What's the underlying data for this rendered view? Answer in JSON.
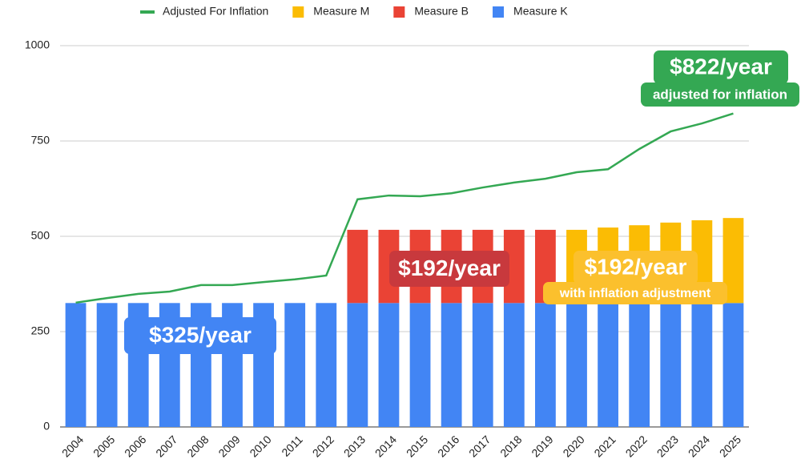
{
  "chart_data": {
    "type": "bar",
    "stacked": true,
    "categories": [
      "2004",
      "2005",
      "2006",
      "2007",
      "2008",
      "2009",
      "2010",
      "2011",
      "2012",
      "2013",
      "2014",
      "2015",
      "2016",
      "2017",
      "2018",
      "2019",
      "2020",
      "2021",
      "2022",
      "2023",
      "2024",
      "2025"
    ],
    "series": [
      {
        "name": "Measure K",
        "color": "#4285f4",
        "type": "bar",
        "values": [
          325,
          325,
          325,
          325,
          325,
          325,
          325,
          325,
          325,
          325,
          325,
          325,
          325,
          325,
          325,
          325,
          325,
          325,
          325,
          325,
          325,
          325
        ]
      },
      {
        "name": "Measure B",
        "color": "#ea4335",
        "type": "bar",
        "values": [
          null,
          null,
          null,
          null,
          null,
          null,
          null,
          null,
          null,
          192,
          192,
          192,
          192,
          192,
          192,
          192,
          null,
          null,
          null,
          null,
          null,
          null
        ]
      },
      {
        "name": "Measure M",
        "color": "#fbbc04",
        "type": "bar",
        "values": [
          null,
          null,
          null,
          null,
          null,
          null,
          null,
          null,
          null,
          null,
          null,
          null,
          null,
          null,
          null,
          null,
          192,
          198,
          204,
          211,
          217,
          223
        ]
      },
      {
        "name": "Adjusted For Inflation",
        "color": "#34a853",
        "type": "line",
        "values": [
          326,
          338,
          349,
          355,
          372,
          372,
          380,
          387,
          397,
          597,
          607,
          605,
          613,
          628,
          641,
          651,
          668,
          676,
          729,
          775,
          796,
          822
        ]
      }
    ],
    "ylim": [
      0,
      1000
    ],
    "yticks": [
      0,
      250,
      500,
      750,
      1000
    ],
    "grid": true,
    "legend": "top",
    "annotations": [
      "$325/year",
      "$192/year",
      "$192/year",
      "with inflation adjustment",
      "$822/year",
      "adjusted for inflation"
    ]
  }
}
